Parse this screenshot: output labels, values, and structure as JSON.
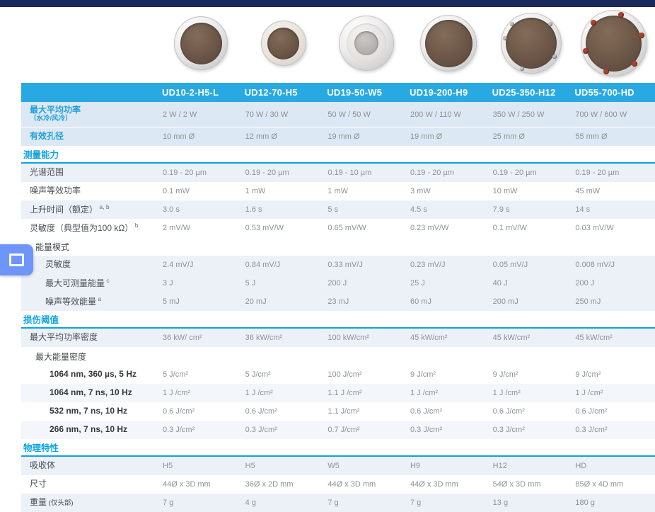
{
  "colors": {
    "top_bar": "#1b2a5c",
    "header_blue": "#29a9e1",
    "section_blue": "#0aa3e0",
    "label_blue": "#1f9fdc",
    "row_tint_blue": "#dce8f3",
    "row_tint_light": "#ecf1f7",
    "overlay_button": "#6d95fa"
  },
  "floating_button": {
    "icon": "square-outline-icon"
  },
  "products": [
    {
      "model": "UD10-2-H5-L",
      "type": "ring",
      "size": 76,
      "core": 0.78
    },
    {
      "model": "UD12-70-H5",
      "type": "tabbed",
      "size": 64,
      "core": 0.7
    },
    {
      "model": "UD19-50-W5",
      "type": "dish",
      "size": 78,
      "core": 0.44
    },
    {
      "model": "UD19-200-H9",
      "type": "ring",
      "size": 80,
      "core": 0.84
    },
    {
      "model": "UD25-350-H12",
      "type": "ring",
      "size": 86,
      "core": 0.84,
      "screws": [
        -135,
        -45,
        30,
        110,
        190
      ],
      "screw_color": "#c2c2c4",
      "screw_size": 6
    },
    {
      "model": "UD55-700-HD",
      "type": "ring",
      "size": 94,
      "core": 0.84,
      "screws": [
        -75,
        -15,
        45,
        105,
        165,
        225
      ],
      "screw_color": "#ad3f2b",
      "screw_size": 8
    }
  ],
  "table": {
    "columns": [
      "UD10-2-H5-L",
      "UD12-70-H5",
      "UD19-50-W5",
      "UD19-200-H9",
      "UD25-350-H12",
      "UD55-700-HD"
    ],
    "rows": [
      {
        "kind": "data",
        "shade": "blue",
        "sep": true,
        "tall": true,
        "label_blue": true,
        "label": "最大平均功率",
        "label_small": "（水冷/风冷）",
        "small_pos": "block",
        "values": [
          "2 W / 2 W",
          "70 W / 30 W",
          "50 W / 50 W",
          "200 W / 110 W",
          "350 W / 250 W",
          "700 W / 600 W"
        ]
      },
      {
        "kind": "data",
        "shade": "blue",
        "label_blue": true,
        "label": "有效孔径",
        "values": [
          "10 mm Ø",
          "12 mm Ø",
          "19 mm Ø",
          "19 mm Ø",
          "25 mm Ø",
          "55 mm Ø"
        ]
      },
      {
        "kind": "section",
        "label": "测量能力"
      },
      {
        "kind": "data",
        "shade": "lt",
        "label": "光谱范围",
        "values": [
          "0.19 - 20 µm",
          "0.19 - 20 µm",
          "0.19 - 10 µm",
          "0.19 - 20 µm",
          "0.19 - 20 µm",
          "0.19 - 20 µm"
        ]
      },
      {
        "kind": "data",
        "label": "噪声等效功率",
        "values": [
          "0.1 mW",
          "1 mW",
          "1 mW",
          "3 mW",
          "10 mW",
          "45 mW"
        ]
      },
      {
        "kind": "data",
        "shade": "lt",
        "label": "上升时间（额定）",
        "sup": "a, b",
        "values": [
          "3.0 s",
          "1.6 s",
          "5 s",
          "4.5 s",
          "7.9 s",
          "14 s"
        ]
      },
      {
        "kind": "data",
        "label": "灵敏度（典型值为100 kΩ）",
        "sup": "b",
        "values": [
          "2 mV/W",
          "0.53 mV/W",
          "0.65 mV/W",
          "0.23 mV/W",
          "0.1 mV/W",
          "0.03 mV/W"
        ]
      },
      {
        "kind": "subheader",
        "label": "能量模式"
      },
      {
        "kind": "data",
        "indent": 2,
        "shade": "lt",
        "label": "灵敏度",
        "values": [
          "2.4 mV/J",
          "0.84 mV/J",
          "0.33 mV/J",
          "0.23 mV/J",
          "0.05 mV/J",
          "0.008 mV/J"
        ]
      },
      {
        "kind": "data",
        "indent": 2,
        "shade": "lt",
        "label": "最大可测量能量",
        "sup": "c",
        "values": [
          "3 J",
          "5 J",
          "200 J",
          "25 J",
          "40 J",
          "200 J"
        ]
      },
      {
        "kind": "data",
        "indent": 2,
        "shade": "lt",
        "label": "噪声等效能量",
        "sup": "a",
        "values": [
          "5 mJ",
          "20 mJ",
          "23 mJ",
          "60 mJ",
          "200 mJ",
          "250 mJ"
        ]
      },
      {
        "kind": "section",
        "label": "损伤阈值"
      },
      {
        "kind": "data",
        "shade": "lt",
        "label": "最大平均功率密度",
        "values": [
          "36 kW/ cm²",
          "36 kW/cm²",
          "100 kW/cm²",
          "45 kW/cm²",
          "45 kW/cm²",
          "45 kW/cm²"
        ]
      },
      {
        "kind": "subheader",
        "label": "最大能量密度"
      },
      {
        "kind": "data",
        "indent": 3,
        "label": "1064 nm, 360 µs, 5 Hz",
        "values": [
          "5 J/cm²",
          "5 J/cm²",
          "100 J/cm²",
          "9 J/cm²",
          "9 J/cm²",
          "9 J/cm²"
        ]
      },
      {
        "kind": "data",
        "indent": 3,
        "shade": "vlt",
        "label": "1064 nm, 7 ns, 10 Hz",
        "values": [
          "1 J /cm²",
          "1 J /cm²",
          "1.1 J /cm²",
          "1 J /cm²",
          "1 J /cm²",
          "1 J /cm²"
        ]
      },
      {
        "kind": "data",
        "indent": 3,
        "label": "532 nm, 7 ns, 10 Hz",
        "values": [
          "0.6 J/cm²",
          "0.6 J/cm²",
          "1.1 J/cm²",
          "0.6 J/cm²",
          "0.6 J/cm²",
          "0.6 J/cm²"
        ]
      },
      {
        "kind": "data",
        "indent": 3,
        "shade": "vlt",
        "label": "266 nm, 7 ns, 10 Hz",
        "values": [
          "0.3 J/cm²",
          "0.3 J/cm²",
          "0.7 J/cm²",
          "0.3 J/cm²",
          "0.3 J/cm²",
          "0.3 J/cm²"
        ]
      },
      {
        "kind": "section",
        "label": "物理特性"
      },
      {
        "kind": "data",
        "shade": "lt",
        "label": "吸收体",
        "values": [
          "H5",
          "H5",
          "W5",
          "H9",
          "H12",
          "HD"
        ]
      },
      {
        "kind": "data",
        "label": "尺寸",
        "values": [
          "44Ø x 3D mm",
          "36Ø x 2D mm",
          "44Ø x 3D mm",
          "44Ø x 3D mm",
          "54Ø x 3D mm",
          "85Ø x 4D mm"
        ]
      },
      {
        "kind": "data",
        "shade": "lt",
        "label": "重量",
        "label_small": "(仅头部)",
        "small_pos": "inline",
        "values": [
          "7 g",
          "4 g",
          "7 g",
          "7 g",
          "13 g",
          "180 g"
        ]
      }
    ]
  }
}
